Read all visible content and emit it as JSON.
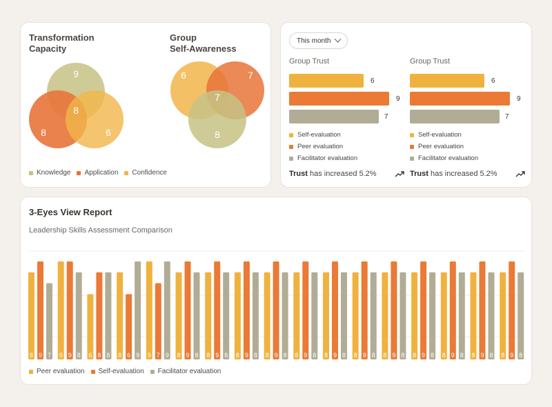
{
  "colors": {
    "knowledge": "#c7c285",
    "application": "#e8743a",
    "confidence": "#f1b54a",
    "self": "#f0b23e",
    "peer": "#ea7a35",
    "facilitator": "#b1ac95"
  },
  "venn1": {
    "title_line1": "Transformation",
    "title_line2": "Capacity",
    "values": {
      "top": "9",
      "left": "8",
      "right": "6",
      "center": "8"
    }
  },
  "venn2": {
    "title_line1": "Group",
    "title_line2": "Self-Awareness",
    "values": {
      "left": "6",
      "right": "7",
      "bottom": "8",
      "center": "7"
    }
  },
  "venn_legend": [
    "Knowledge",
    "Application",
    "Confidence"
  ],
  "dropdown": {
    "label": "This month"
  },
  "trust_panels": [
    {
      "title": "Group Trust",
      "bars": [
        {
          "key": "self",
          "value": 6
        },
        {
          "key": "peer",
          "value": 9
        },
        {
          "key": "facilitator",
          "value": 7
        }
      ],
      "legend": [
        "Self-evaluation",
        "Peer evaluation",
        "Facilitator evaluation"
      ],
      "note_bold": "Trust",
      "note_rest": " has increased 5.2%"
    },
    {
      "title": "Group Trust",
      "bars": [
        {
          "key": "self",
          "value": 6
        },
        {
          "key": "peer",
          "value": 9
        },
        {
          "key": "facilitator",
          "value": 7
        }
      ],
      "legend": [
        "Self-evaluation",
        "Peer evaluation",
        "Facilitator evaluation"
      ],
      "note_bold": "Trust",
      "note_rest": " has increased 5.2%"
    }
  ],
  "report": {
    "title": "3-Eyes View Report",
    "subtitle": "Leadership Skills Assessment Comparison"
  },
  "chart_data": {
    "type": "bar",
    "ylim": [
      0,
      9
    ],
    "categories": [
      "",
      "",
      "",
      "",
      "",
      "",
      "",
      "",
      "",
      "",
      "",
      "",
      "",
      "",
      "",
      "",
      ""
    ],
    "series": [
      {
        "name": "Peer evaluation",
        "color": "#f0b23e",
        "values": [
          8,
          9,
          6,
          8,
          9,
          8,
          8,
          8,
          8,
          8,
          8,
          8,
          8,
          8,
          8,
          8,
          8
        ]
      },
      {
        "name": "Self-evaluation",
        "color": "#ea7a35",
        "values": [
          9,
          9,
          8,
          6,
          7,
          9,
          9,
          9,
          9,
          9,
          9,
          9,
          9,
          9,
          9,
          9,
          9
        ]
      },
      {
        "name": "Facilitator evaluation",
        "color": "#b1ac95",
        "values": [
          7,
          8,
          8,
          9,
          9,
          8,
          8,
          8,
          8,
          8,
          8,
          8,
          8,
          8,
          8,
          8,
          8
        ]
      }
    ],
    "legend": [
      "Peer evaluation",
      "Self-evaluation",
      "Facilitator evaluation"
    ]
  }
}
